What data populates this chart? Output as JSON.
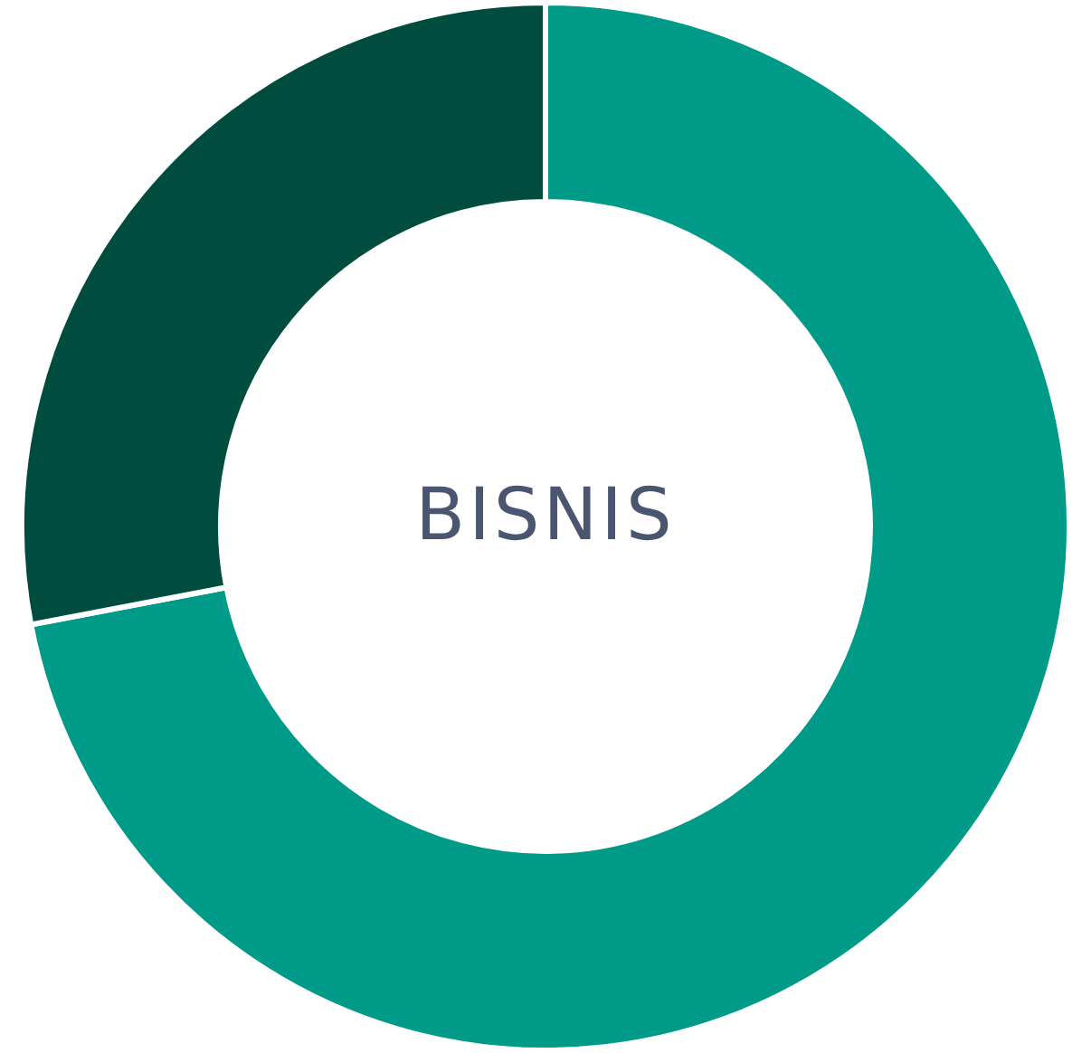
{
  "chart_data": {
    "type": "donut",
    "title": "BISNIS",
    "categories": [
      null,
      null
    ],
    "values": [
      72,
      28
    ],
    "colors": [
      "#009a88",
      "#004d40"
    ],
    "legend": false
  }
}
